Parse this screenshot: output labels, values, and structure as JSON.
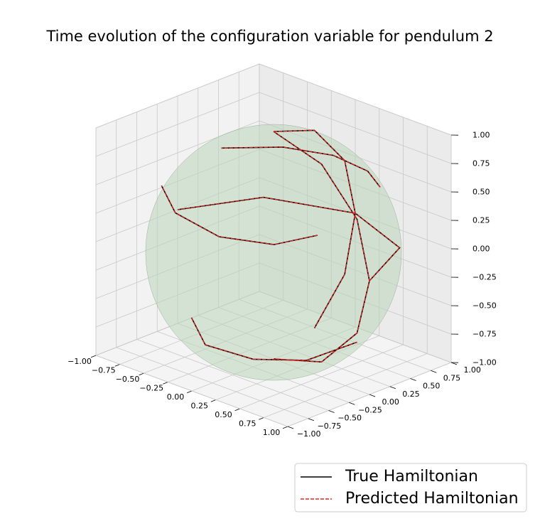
{
  "chart_data": {
    "type": "line3d",
    "title": "Time evolution of the configuration variable for pendulum 2",
    "xlim": [
      -1,
      1
    ],
    "ylim": [
      -1,
      1
    ],
    "zlim": [
      -1,
      1
    ],
    "xticks": [
      {
        "value": -1,
        "label": "−1.00"
      },
      {
        "value": -0.75,
        "label": "−0.75"
      },
      {
        "value": -0.5,
        "label": "−0.50"
      },
      {
        "value": -0.25,
        "label": "−0.25"
      },
      {
        "value": 0,
        "label": "0.00"
      },
      {
        "value": 0.25,
        "label": "0.25"
      },
      {
        "value": 0.5,
        "label": "0.50"
      },
      {
        "value": 0.75,
        "label": "0.75"
      },
      {
        "value": 1,
        "label": "1.00"
      }
    ],
    "yticks": [
      {
        "value": -1,
        "label": "−1.00"
      },
      {
        "value": -0.75,
        "label": "−0.75"
      },
      {
        "value": -0.5,
        "label": "−0.50"
      },
      {
        "value": -0.25,
        "label": "−0.25"
      },
      {
        "value": 0,
        "label": "0.00"
      },
      {
        "value": 0.25,
        "label": "0.25"
      },
      {
        "value": 0.5,
        "label": "0.50"
      },
      {
        "value": 0.75,
        "label": "0.75"
      },
      {
        "value": 1,
        "label": "1.00"
      }
    ],
    "zticks": [
      {
        "value": -1,
        "label": "−1.00"
      },
      {
        "value": -0.75,
        "label": "−0.75"
      },
      {
        "value": -0.5,
        "label": "−0.50"
      },
      {
        "value": -0.25,
        "label": "−0.25"
      },
      {
        "value": 0,
        "label": "0.00"
      },
      {
        "value": 0.25,
        "label": "0.25"
      },
      {
        "value": 0.5,
        "label": "0.50"
      },
      {
        "value": 0.75,
        "label": "0.75"
      },
      {
        "value": 1,
        "label": "1.00"
      }
    ],
    "grid": true,
    "legend": "lower right",
    "series": [
      {
        "name": "True Hamiltonian",
        "color": "#000000",
        "dash": false,
        "x": [
          1,
          0.71,
          0,
          -0.71,
          -1,
          null,
          0,
          0.5,
          0.87,
          1,
          0.87,
          0.5,
          0,
          null,
          0,
          0,
          0,
          0,
          0,
          0,
          null,
          0.6,
          0.3,
          -0.1,
          -0.5,
          -0.8,
          null,
          0.8,
          0.6,
          0.2,
          -0.3,
          -0.7,
          null,
          -0.6,
          -0.2,
          0.3,
          0.6,
          0.7
        ],
        "y": [
          0,
          0.71,
          1,
          0.71,
          0,
          null,
          0,
          0,
          0,
          0,
          0,
          0,
          0,
          null,
          0,
          0.5,
          0.87,
          1,
          0.87,
          0.5,
          null,
          0.6,
          0.8,
          0.85,
          0.7,
          0.3,
          null,
          -0.4,
          -0.7,
          -0.9,
          -0.85,
          -0.55,
          null,
          -0.3,
          -0.6,
          -0.6,
          -0.3,
          0.2
        ],
        "z": [
          0,
          0,
          0,
          0,
          0,
          null,
          1,
          0.87,
          0.5,
          0,
          -0.5,
          -0.87,
          -1,
          null,
          1,
          0.87,
          0.5,
          0,
          -0.5,
          -0.87,
          null,
          0.53,
          0.52,
          0.52,
          0.51,
          0.52,
          null,
          0.45,
          0.39,
          0.39,
          0.43,
          0.46,
          null,
          -0.74,
          -0.77,
          -0.74,
          -0.74,
          -0.69
        ]
      },
      {
        "name": "Predicted Hamiltonian",
        "color": "#e8231c",
        "dash": true,
        "x": [
          1,
          0.71,
          0,
          -0.71,
          -1,
          null,
          0,
          0.5,
          0.87,
          1,
          0.87,
          0.5,
          0,
          null,
          0,
          0,
          0,
          0,
          0,
          0,
          null,
          0.6,
          0.3,
          -0.1,
          -0.5,
          -0.8,
          null,
          0.8,
          0.6,
          0.2,
          -0.3,
          -0.7,
          null,
          -0.6,
          -0.2,
          0.3,
          0.6,
          0.7
        ],
        "y": [
          0,
          0.71,
          1,
          0.71,
          0,
          null,
          0,
          0,
          0,
          0,
          0,
          0,
          0,
          null,
          0,
          0.5,
          0.87,
          1,
          0.87,
          0.5,
          null,
          0.6,
          0.8,
          0.85,
          0.7,
          0.3,
          null,
          -0.4,
          -0.7,
          -0.9,
          -0.85,
          -0.55,
          null,
          -0.3,
          -0.6,
          -0.6,
          -0.3,
          0.2
        ],
        "z": [
          0,
          0,
          0,
          0,
          0,
          null,
          1,
          0.87,
          0.5,
          0,
          -0.5,
          -0.87,
          -1,
          null,
          1,
          0.87,
          0.5,
          0,
          -0.5,
          -0.87,
          null,
          0.53,
          0.52,
          0.52,
          0.51,
          0.52,
          null,
          0.45,
          0.39,
          0.39,
          0.43,
          0.46,
          null,
          -0.74,
          -0.77,
          -0.74,
          -0.74,
          -0.69
        ]
      }
    ]
  }
}
